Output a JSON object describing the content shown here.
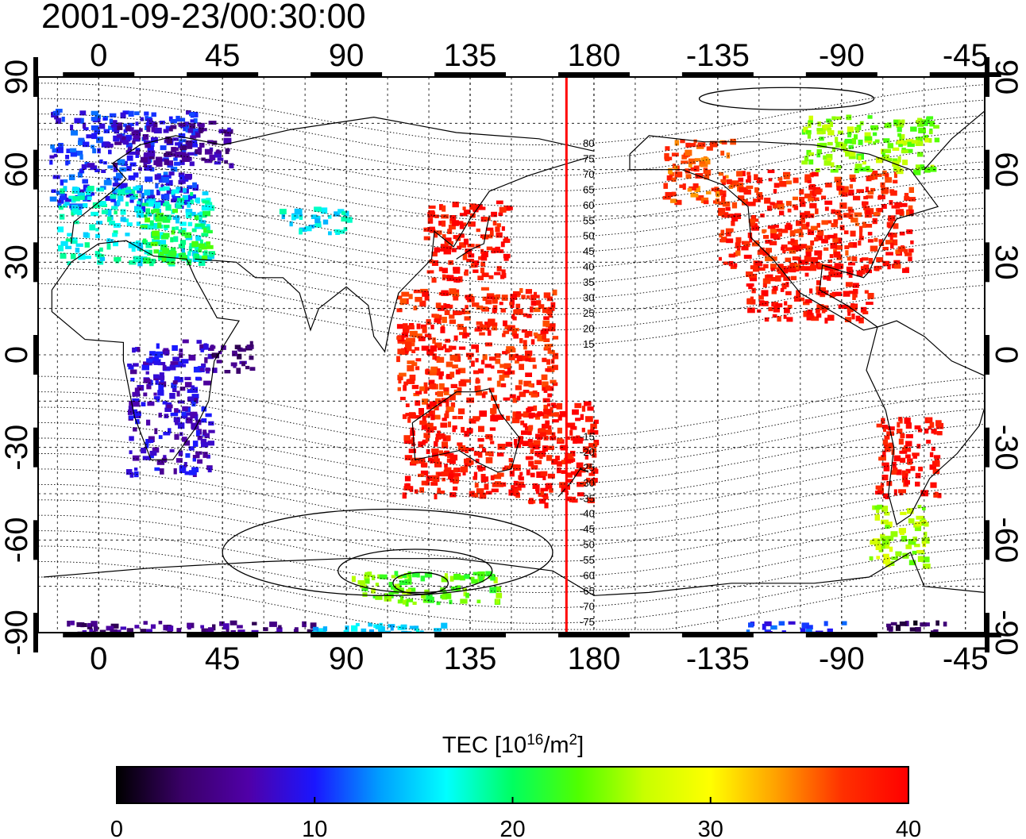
{
  "title": "2001-09-23/00:30:00",
  "axes": {
    "x_ticks": [
      "0",
      "45",
      "90",
      "135",
      "180",
      "-135",
      "-90",
      "-45"
    ],
    "y_ticks": [
      "90",
      "60",
      "30",
      "0",
      "-30",
      "-60",
      "-90"
    ]
  },
  "contour_labels_north": [
    "80",
    "75",
    "70",
    "65",
    "60",
    "55",
    "50",
    "45",
    "40",
    "35",
    "30",
    "25",
    "20",
    "15"
  ],
  "contour_labels_south": [
    "-15",
    "-20",
    "-25",
    "-30",
    "-35",
    "-40",
    "-45",
    "-50",
    "-55",
    "-60",
    "-65",
    "-70",
    "-75"
  ],
  "colorbar": {
    "label_main": "TEC  [10",
    "label_sup1": "16",
    "label_mid": "/m",
    "label_sup2": "2",
    "label_end": "]",
    "ticks": [
      "0",
      "10",
      "20",
      "30",
      "40"
    ],
    "range": [
      0,
      40
    ],
    "colormap": [
      "#000000",
      "#3a0068",
      "#5000a8",
      "#1a16ff",
      "#00a0ff",
      "#00ffff",
      "#00ff60",
      "#50ff00",
      "#c8ff00",
      "#ffff00",
      "#ffa000",
      "#ff3000",
      "#ff0000"
    ]
  },
  "chart_data": {
    "type": "heatmap",
    "title": "2001-09-23/00:30:00",
    "x_range": [
      -22,
      322
    ],
    "y_range": [
      -90,
      90
    ],
    "value_range": [
      0,
      40
    ],
    "meridian_line_lon": 170,
    "patches": [
      {
        "lon": [
          -18,
          35
        ],
        "lat": [
          48,
          80
        ],
        "tec": 10
      },
      {
        "lon": [
          5,
          48
        ],
        "lat": [
          62,
          76
        ],
        "tec": 6
      },
      {
        "lon": [
          -15,
          40
        ],
        "lat": [
          30,
          55
        ],
        "tec": 17
      },
      {
        "lon": [
          15,
          40
        ],
        "lat": [
          30,
          48
        ],
        "tec": 21
      },
      {
        "lon": [
          65,
          90
        ],
        "lat": [
          40,
          48
        ],
        "tec": 16
      },
      {
        "lon": [
          118,
          148
        ],
        "lat": [
          25,
          50
        ],
        "tec": 39
      },
      {
        "lon": [
          108,
          165
        ],
        "lat": [
          -20,
          22
        ],
        "tec": 38
      },
      {
        "lon": [
          110,
          160
        ],
        "lat": [
          -45,
          -18
        ],
        "tec": 39
      },
      {
        "lon": [
          155,
          180
        ],
        "lat": [
          -48,
          -15
        ],
        "tec": 39
      },
      {
        "lon": [
          205,
          230
        ],
        "lat": [
          50,
          70
        ],
        "tec": 36
      },
      {
        "lon": [
          225,
          295
        ],
        "lat": [
          28,
          60
        ],
        "tec": 38
      },
      {
        "lon": [
          235,
          280
        ],
        "lat": [
          12,
          30
        ],
        "tec": 39
      },
      {
        "lon": [
          255,
          305
        ],
        "lat": [
          60,
          78
        ],
        "tec": 25
      },
      {
        "lon": [
          282,
          305
        ],
        "lat": [
          -45,
          -20
        ],
        "tec": 39
      },
      {
        "lon": [
          280,
          300
        ],
        "lat": [
          -68,
          -48
        ],
        "tec": 26
      },
      {
        "lon": [
          10,
          40
        ],
        "lat": [
          -38,
          5
        ],
        "tec": 8
      },
      {
        "lon": [
          40,
          55
        ],
        "lat": [
          -5,
          5
        ],
        "tec": 5
      },
      {
        "lon": [
          90,
          145
        ],
        "lat": [
          -80,
          -70
        ],
        "tec": 24
      },
      {
        "lon": [
          -20,
          80
        ],
        "lat": [
          -90,
          -86
        ],
        "tec": 5
      },
      {
        "lon": [
          75,
          125
        ],
        "lat": [
          -90,
          -86
        ],
        "tec": 15
      },
      {
        "lon": [
          235,
          270
        ],
        "lat": [
          -90,
          -86
        ],
        "tec": 10
      },
      {
        "lon": [
          285,
          310
        ],
        "lat": [
          -90,
          -86
        ],
        "tec": 3
      }
    ]
  }
}
